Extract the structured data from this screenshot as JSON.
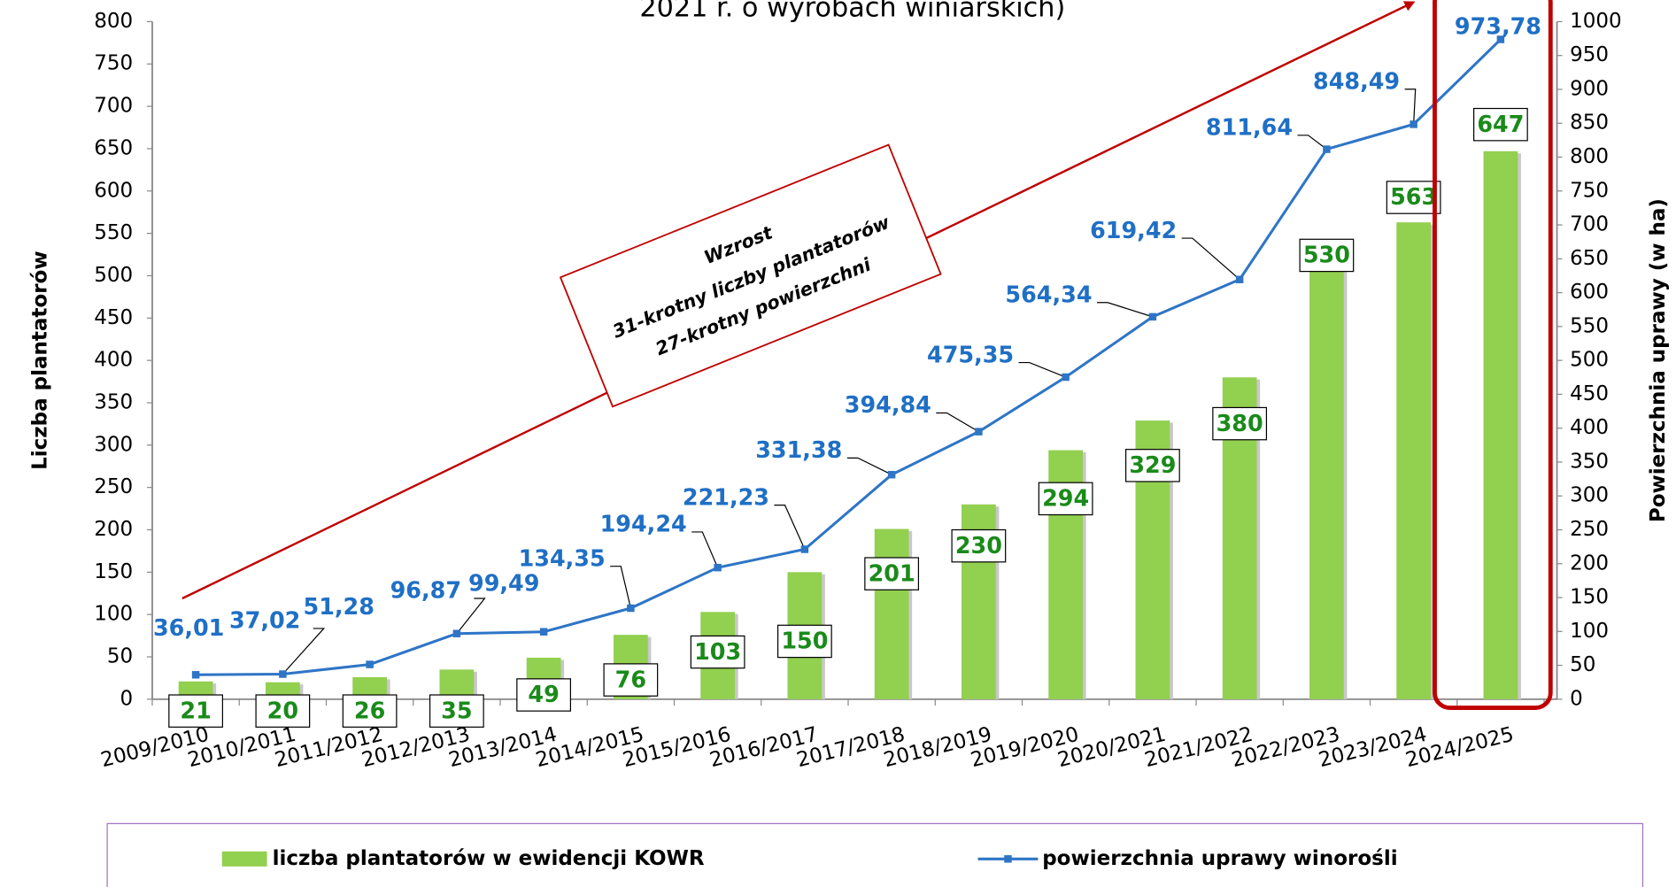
{
  "chart_data": {
    "type": "bar-line",
    "title": "2021 r. o wyrobach winiarskich)",
    "y_label": "Liczba plantatorów",
    "y2_label": "Powierzchnia uprawy (w ha)",
    "annotation": [
      "Wzrost",
      "31-krotny liczby plantatorów",
      "27-krotny powierzchni"
    ],
    "categories": [
      "2009/2010",
      "2010/2011",
      "2011/2012",
      "2012/2013",
      "2013/2014",
      "2014/2015",
      "2015/2016",
      "2016/2017",
      "2017/2018",
      "2018/2019",
      "2019/2020",
      "2020/2021",
      "2021/2022",
      "2022/2023",
      "2023/2024",
      "2024/2025"
    ],
    "series": [
      {
        "name": "liczba plantatorów w ewidencji KOWR",
        "color": "#92d050",
        "type": "bar",
        "values": [
          21,
          20,
          26,
          35,
          49,
          76,
          103,
          150,
          201,
          230,
          294,
          329,
          380,
          530,
          563,
          647
        ]
      },
      {
        "name": "powierzchnia uprawy winorośli",
        "color": "#2e75c6",
        "type": "line",
        "axis": "y2",
        "values": [
          36.01,
          37.02,
          51.28,
          96.87,
          99.49,
          134.35,
          194.24,
          221.23,
          331.38,
          394.84,
          475.35,
          564.34,
          619.42,
          811.64,
          848.49,
          973.78
        ],
        "value_labels": [
          "36,01",
          "37,02",
          "51,28",
          "96,87",
          "99,49",
          "134,35",
          "194,24",
          "221,23",
          "331,38",
          "394,84",
          "475,35",
          "564,34",
          "619,42",
          "811,64",
          "848,49",
          "973,78"
        ]
      }
    ],
    "ylim": [
      0,
      800
    ],
    "yticks": [
      0,
      50,
      100,
      150,
      200,
      250,
      300,
      350,
      400,
      450,
      500,
      550,
      600,
      650,
      700,
      750,
      800
    ],
    "y2lim": [
      0,
      1000
    ],
    "y2ticks": [
      0,
      50,
      100,
      150,
      200,
      250,
      300,
      350,
      400,
      450,
      500,
      550,
      600,
      650,
      700,
      750,
      800,
      850,
      900,
      950,
      1000
    ]
  }
}
